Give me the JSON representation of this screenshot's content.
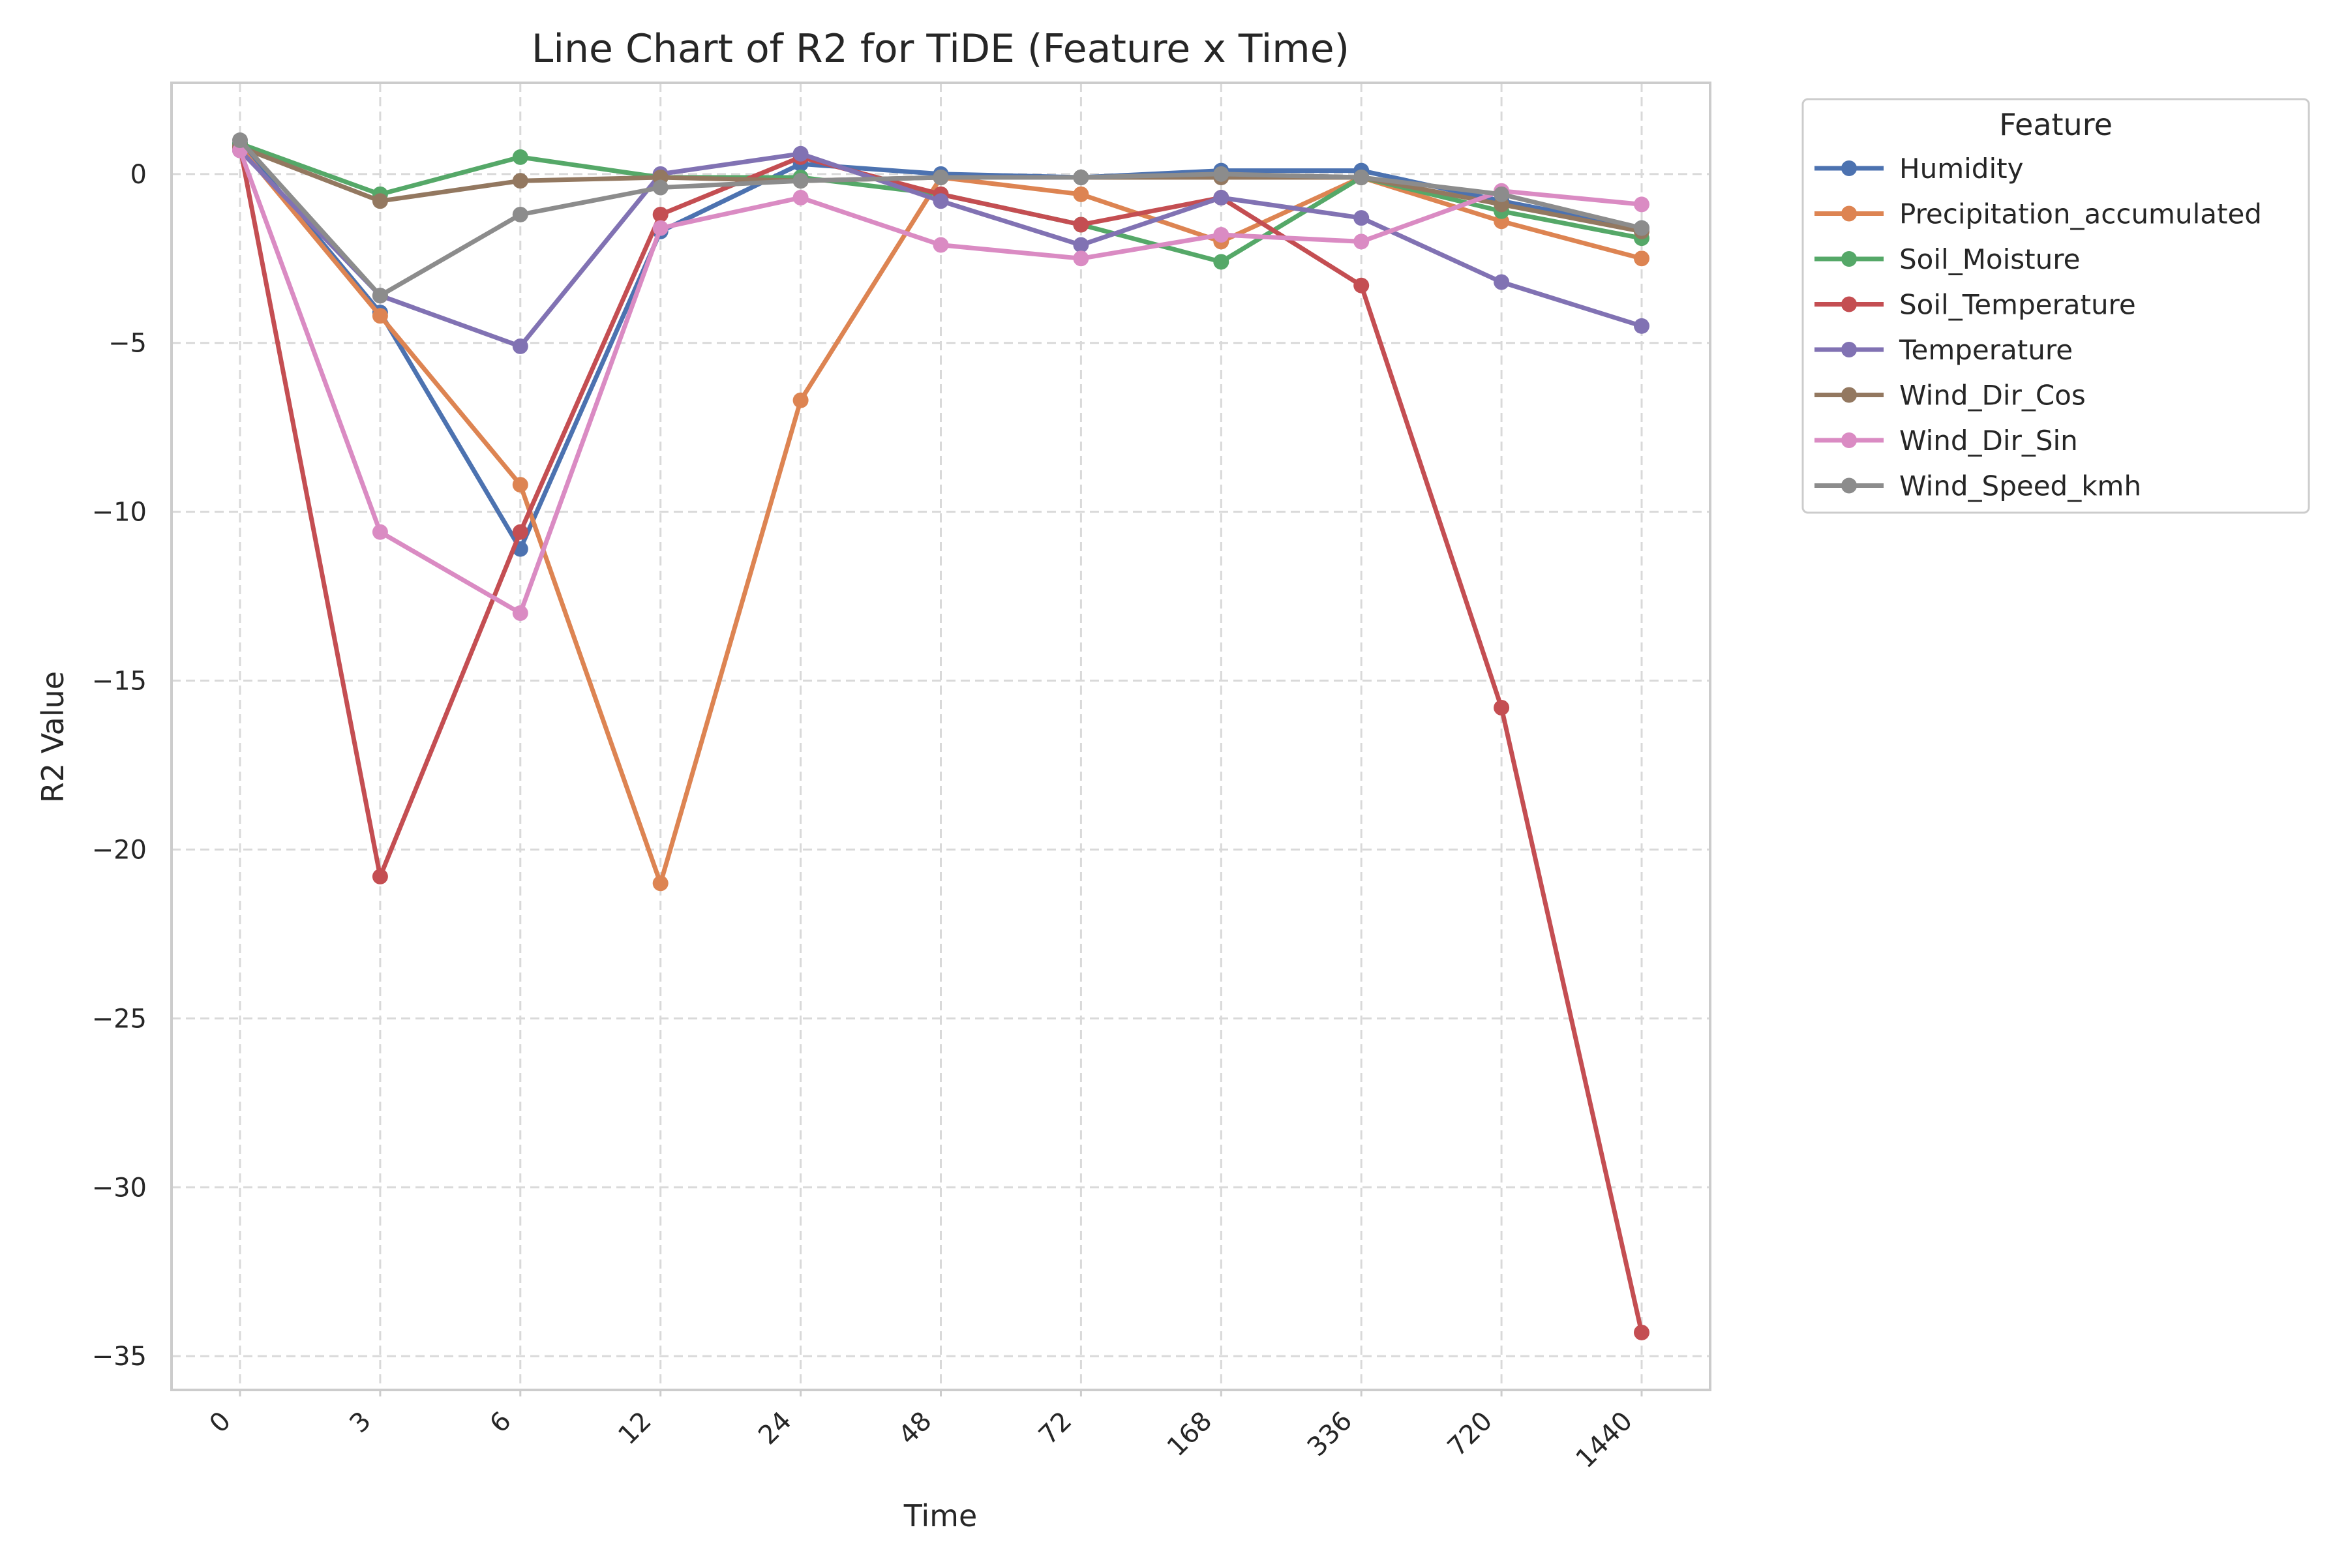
{
  "chart_data": {
    "type": "line",
    "title": "Line Chart of R2 for TiDE (Feature x Time)",
    "xlabel": "Time",
    "ylabel": "R2 Value",
    "categories": [
      "0",
      "3",
      "6",
      "12",
      "24",
      "48",
      "72",
      "168",
      "336",
      "720",
      "1440"
    ],
    "ylim": [
      -36,
      2.7
    ],
    "yticks": [
      0,
      -5,
      -10,
      -15,
      -20,
      -25,
      -30,
      -35
    ],
    "ytick_labels": [
      "0",
      "−5",
      "−10",
      "−15",
      "−20",
      "−25",
      "−30",
      "−35"
    ],
    "grid": true,
    "legend": {
      "title": "Feature",
      "placement": "outside-top-right"
    },
    "series": [
      {
        "name": "Humidity",
        "color": "#4c72b0",
        "values": [
          0.9,
          -4.1,
          -11.1,
          -1.7,
          0.3,
          0.0,
          -0.1,
          0.1,
          0.1,
          -0.8,
          -1.6
        ]
      },
      {
        "name": "Precipitation_accumulated",
        "color": "#dd8452",
        "values": [
          0.8,
          -4.2,
          -9.2,
          -21.0,
          -6.7,
          -0.1,
          -0.6,
          -2.0,
          -0.1,
          -1.4,
          -2.5
        ]
      },
      {
        "name": "Soil_Moisture",
        "color": "#55a868",
        "values": [
          0.9,
          -0.6,
          0.5,
          -0.1,
          -0.1,
          -0.6,
          -1.5,
          -2.6,
          -0.1,
          -1.1,
          -1.9
        ]
      },
      {
        "name": "Soil_Temperature",
        "color": "#c44e52",
        "values": [
          0.8,
          -20.8,
          -10.6,
          -1.2,
          0.5,
          -0.6,
          -1.5,
          -0.7,
          -3.3,
          -15.8,
          -34.3
        ]
      },
      {
        "name": "Temperature",
        "color": "#8172b3",
        "values": [
          0.7,
          -3.6,
          -5.1,
          0.0,
          0.6,
          -0.8,
          -2.1,
          -0.7,
          -1.3,
          -3.2,
          -4.5
        ]
      },
      {
        "name": "Wind_Dir_Cos",
        "color": "#937860",
        "values": [
          0.8,
          -0.8,
          -0.2,
          -0.1,
          -0.2,
          -0.1,
          -0.1,
          -0.1,
          -0.1,
          -0.9,
          -1.7
        ]
      },
      {
        "name": "Wind_Dir_Sin",
        "color": "#da8bc3",
        "values": [
          0.7,
          -10.6,
          -13.0,
          -1.6,
          -0.7,
          -2.1,
          -2.5,
          -1.8,
          -2.0,
          -0.5,
          -0.9
        ]
      },
      {
        "name": "Wind_Speed_kmh",
        "color": "#8c8c8c",
        "values": [
          1.0,
          -3.6,
          -1.2,
          -0.4,
          -0.2,
          -0.1,
          -0.1,
          0.0,
          -0.1,
          -0.6,
          -1.6
        ]
      }
    ]
  }
}
